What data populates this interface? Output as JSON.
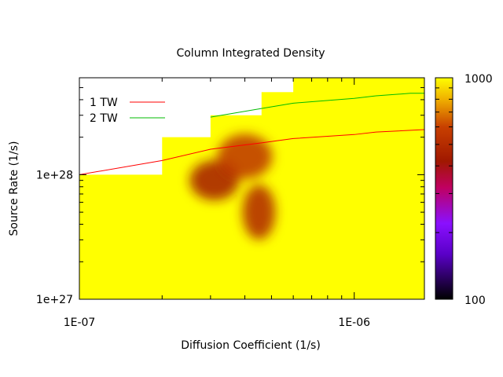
{
  "chart_data": {
    "type": "heatmap",
    "title": "Column Integrated Density",
    "xlabel": "Diffusion Coefficient (1/s)",
    "ylabel": "Source Rate (1/s)",
    "x_scale": "log",
    "y_scale": "log",
    "xlim": [
      1e-07,
      1.8e-06
    ],
    "ylim": [
      1e+27,
      6e+28
    ],
    "x_tick_labels": [
      {
        "value": 1e-07,
        "label": "1E-07"
      },
      {
        "value": 1e-06,
        "label": "1E-06"
      }
    ],
    "y_tick_labels": [
      {
        "value": 1e+27,
        "label": "1e+27"
      },
      {
        "value": 1e+28,
        "label": "1e+28"
      }
    ],
    "colorbar": {
      "min": 100,
      "max": 1000,
      "scale": "log",
      "min_label": "100",
      "max_label": "1000",
      "stops": [
        {
          "value": 100,
          "color": "#000000"
        },
        {
          "value": 160,
          "color": "#5a00c8"
        },
        {
          "value": 220,
          "color": "#8a10ff"
        },
        {
          "value": 320,
          "color": "#c00060"
        },
        {
          "value": 420,
          "color": "#a01800"
        },
        {
          "value": 600,
          "color": "#c84000"
        },
        {
          "value": 800,
          "color": "#f0b000"
        },
        {
          "value": 1000,
          "color": "#ffff00"
        }
      ]
    },
    "heatmap_columns": [
      {
        "x0": 1e-07,
        "x1": 2e-07,
        "ymax": 1e+28
      },
      {
        "x0": 2e-07,
        "x1": 3e-07,
        "ymax": 2e+28
      },
      {
        "x0": 3e-07,
        "x1": 4.6e-07,
        "ymax": 3e+28
      },
      {
        "x0": 4.6e-07,
        "x1": 6e-07,
        "ymax": 4.6e+28
      },
      {
        "x0": 6e-07,
        "x1": 1.8e-06,
        "ymax": 6e+28
      }
    ],
    "heatmap_background_value": 1000,
    "hotspots": [
      {
        "x": 3.1e-07,
        "y": 9e+27,
        "value": 430,
        "sx": 0.09,
        "sy": 0.16
      },
      {
        "x": 4.5e-07,
        "y": 5e+27,
        "value": 480,
        "sx": 0.06,
        "sy": 0.22
      },
      {
        "x": 4e-07,
        "y": 1.4e+28,
        "value": 540,
        "sx": 0.1,
        "sy": 0.18
      }
    ],
    "hotspot_extent": {
      "x0": 2e-07,
      "x1": 6e-07,
      "y0": 2.3e+27,
      "y1": 3e+28
    },
    "series": [
      {
        "name": "1 TW",
        "color": "#ff0000",
        "x": [
          1e-07,
          2e-07,
          3e-07,
          4.6e-07,
          6e-07,
          1e-06,
          1.2e-06,
          1.8e-06
        ],
        "y": [
          1e+28,
          1.3e+28,
          1.6e+28,
          1.8e+28,
          1.95e+28,
          2.1e+28,
          2.2e+28,
          2.3e+28
        ]
      },
      {
        "name": "2 TW",
        "color": "#00bb00",
        "x": [
          3e-07,
          4.6e-07,
          6e-07,
          1e-06,
          1.2e-06,
          1.6e-06,
          1.8e-06
        ],
        "y": [
          2.9e+28,
          3.4e+28,
          3.75e+28,
          4.1e+28,
          4.3e+28,
          4.5e+28,
          4.5e+28
        ]
      }
    ],
    "legend_position": "top-left",
    "grid": false
  }
}
